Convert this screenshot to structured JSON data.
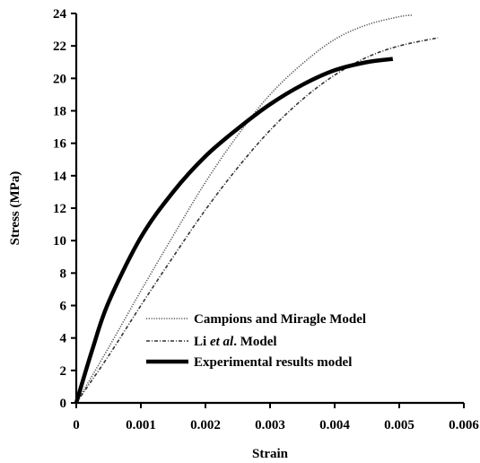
{
  "chart_data": {
    "type": "line",
    "xlabel": "Strain",
    "ylabel": "Stress (MPa)",
    "xlim": [
      0,
      0.006
    ],
    "ylim": [
      0,
      24
    ],
    "x_ticks": [
      "0",
      "0.001",
      "0.002",
      "0.003",
      "0.004",
      "0.005",
      "0.006"
    ],
    "y_ticks": [
      "0",
      "2",
      "4",
      "6",
      "8",
      "10",
      "12",
      "14",
      "16",
      "18",
      "20",
      "22",
      "24"
    ],
    "grid": false,
    "legend_position": "bottom-center",
    "series": [
      {
        "name": "Campions and Miragle Model",
        "style": "dotted",
        "color": "#555555",
        "points": [
          [
            0,
            0
          ],
          [
            0.0005,
            3.4
          ],
          [
            0.001,
            6.9
          ],
          [
            0.0015,
            10.3
          ],
          [
            0.002,
            13.6
          ],
          [
            0.0025,
            16.5
          ],
          [
            0.003,
            19.0
          ],
          [
            0.0035,
            20.9
          ],
          [
            0.004,
            22.4
          ],
          [
            0.0045,
            23.3
          ],
          [
            0.005,
            23.8
          ],
          [
            0.0052,
            23.9
          ]
        ]
      },
      {
        "name": "Li et al. Model",
        "name_parts": {
          "pre": "Li ",
          "italic": "et al",
          "post": ". Model"
        },
        "style": "dashdot",
        "color": "#333333",
        "points": [
          [
            0,
            0
          ],
          [
            0.0005,
            2.9
          ],
          [
            0.001,
            6.0
          ],
          [
            0.0015,
            9.0
          ],
          [
            0.002,
            11.9
          ],
          [
            0.0025,
            14.5
          ],
          [
            0.003,
            16.8
          ],
          [
            0.0035,
            18.7
          ],
          [
            0.004,
            20.2
          ],
          [
            0.0045,
            21.3
          ],
          [
            0.005,
            22.0
          ],
          [
            0.0056,
            22.5
          ]
        ]
      },
      {
        "name": "Experimental results model",
        "style": "solid",
        "color": "#000000",
        "points": [
          [
            0,
            0
          ],
          [
            0.00025,
            3.3
          ],
          [
            0.0005,
            6.2
          ],
          [
            0.001,
            10.2
          ],
          [
            0.0015,
            13.0
          ],
          [
            0.002,
            15.2
          ],
          [
            0.0025,
            16.9
          ],
          [
            0.003,
            18.4
          ],
          [
            0.0035,
            19.6
          ],
          [
            0.004,
            20.5
          ],
          [
            0.0045,
            21.0
          ],
          [
            0.0049,
            21.2
          ]
        ]
      }
    ]
  }
}
